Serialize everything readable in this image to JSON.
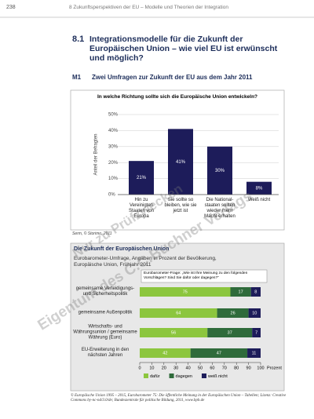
{
  "header": {
    "page_number": "238",
    "running_head": "8 Zukunftsperspektiven der EU – Modelle und Theorien der Integration"
  },
  "section": {
    "number": "8.1",
    "title": "Integrationsmodelle für die Zukunft der Europäischen Union – wie viel EU ist erwünscht und möglich?"
  },
  "figure": {
    "label": "M1",
    "title": "Zwei Umfragen zur Zukunft der EU aus dem Jahr 2011"
  },
  "watermark": [
    "Nur zu Prüfzwecken",
    "Eigentum des C.C.Buchner Verlags"
  ],
  "chart_data": [
    {
      "type": "bar",
      "title": "In welche Richtung sollte sich die Europäische Union entwickeln?",
      "ylabel": "Anteil der Befragten",
      "categories": [
        "Hin zu Vereinigten Staaten von Europa",
        "Sie sollte so bleiben, wie sie jetzt ist",
        "Die National-staaten sollten wieder mehr Macht erhalten",
        "Weiß nicht"
      ],
      "values": [
        21,
        41,
        30,
        8
      ],
      "value_labels": [
        "21%",
        "41%",
        "30%",
        "8%"
      ],
      "color": "#1d1c5a",
      "ylim": [
        0,
        50
      ],
      "yticks": [
        {
          "value": 0,
          "label": "0%"
        },
        {
          "value": 10,
          "label": "10%"
        },
        {
          "value": 20,
          "label": "20%"
        },
        {
          "value": 30,
          "label": "30%"
        },
        {
          "value": 40,
          "label": "40%"
        },
        {
          "value": 50,
          "label": "50%"
        }
      ],
      "grid": true,
      "source": "Serm, © Storimo, 2011"
    },
    {
      "type": "bar",
      "horizontal": true,
      "stacked": true,
      "title": "Die Zukunft der Europäischen Union",
      "subtitle": "Eurobarometer-Umfrage, Angaben in Prozent der Bevölkerung, Europäische Union, Frühjahr 2011",
      "annotation": "Eurobarometer-Frage: „Wie ist Ihre Meinung zu den folgenden Vorschlägen? Sind Sie dafür oder dagegen?“",
      "categories": [
        "gemeinsame Verteidigungs- und Sicherheitspolitik",
        "gemeinsame Außenpolitik",
        "Wirtschafts- und Währungsunion / gemeinsame Währung (Euro)",
        "EU-Erweiterung in den nächsten Jahren"
      ],
      "series": [
        {
          "name": "dafür",
          "color": "#8cc63e",
          "values": [
            75,
            64,
            56,
            42
          ]
        },
        {
          "name": "dagegen",
          "color": "#2f6b3b",
          "values": [
            17,
            26,
            37,
            47
          ]
        },
        {
          "name": "weiß nicht",
          "color": "#1d1c5a",
          "values": [
            8,
            10,
            7,
            11
          ]
        }
      ],
      "xlim": [
        0,
        100
      ],
      "xticks": [
        0,
        10,
        20,
        30,
        40,
        50,
        60,
        70,
        80,
        90,
        100
      ],
      "xlabel": "Prozent",
      "source": "© Europäische Union 1995 – 2015, Eurobarometer 75: Die öffentliche Meinung in der Europäischen Union – Tabellen; Lizenz: Creative Commons by-nc-nd/3.0/de; Bundeszentrale für politische Bildung, 2011, www.bpb.de"
    }
  ]
}
